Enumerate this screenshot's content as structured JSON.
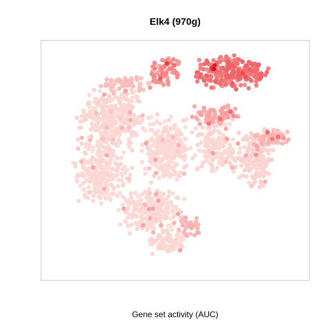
{
  "chart_data": {
    "type": "scatter",
    "title": "Elk4 (970g)",
    "xlabel": "Gene set activity (AUC)",
    "ylabel": "",
    "grid": false,
    "legend": "none",
    "axes_visible": false,
    "colors": {
      "low": "#fbe3df",
      "mid": "#f8a0a0",
      "high": "#e8262e",
      "max": "#b80000",
      "frame": "#cccccc",
      "background": "#ffffff"
    },
    "point_groups": [
      {
        "cx": 0.25,
        "cy": 0.32,
        "rx": 0.13,
        "ry": 0.12,
        "n": 320,
        "level": 0.06
      },
      {
        "cx": 0.22,
        "cy": 0.55,
        "rx": 0.11,
        "ry": 0.13,
        "n": 260,
        "level": 0.05
      },
      {
        "cx": 0.47,
        "cy": 0.45,
        "rx": 0.09,
        "ry": 0.14,
        "n": 260,
        "level": 0.05
      },
      {
        "cx": 0.65,
        "cy": 0.43,
        "rx": 0.08,
        "ry": 0.12,
        "n": 160,
        "level": 0.06
      },
      {
        "cx": 0.41,
        "cy": 0.72,
        "rx": 0.12,
        "ry": 0.09,
        "n": 240,
        "level": 0.05
      },
      {
        "cx": 0.47,
        "cy": 0.85,
        "rx": 0.08,
        "ry": 0.05,
        "n": 90,
        "level": 0.06
      },
      {
        "cx": 0.81,
        "cy": 0.49,
        "rx": 0.07,
        "ry": 0.12,
        "n": 170,
        "level": 0.08
      },
      {
        "cx": 0.88,
        "cy": 0.4,
        "rx": 0.07,
        "ry": 0.03,
        "n": 60,
        "level": 0.25
      },
      {
        "cx": 0.72,
        "cy": 0.12,
        "rx": 0.13,
        "ry": 0.07,
        "n": 240,
        "level": 0.55
      },
      {
        "cx": 0.46,
        "cy": 0.12,
        "rx": 0.06,
        "ry": 0.06,
        "n": 70,
        "level": 0.45
      },
      {
        "cx": 0.66,
        "cy": 0.3,
        "rx": 0.1,
        "ry": 0.04,
        "n": 70,
        "level": 0.35
      },
      {
        "cx": 0.31,
        "cy": 0.17,
        "rx": 0.1,
        "ry": 0.04,
        "n": 60,
        "level": 0.2
      },
      {
        "cx": 0.55,
        "cy": 0.79,
        "rx": 0.04,
        "ry": 0.04,
        "n": 30,
        "level": 0.25
      }
    ]
  }
}
